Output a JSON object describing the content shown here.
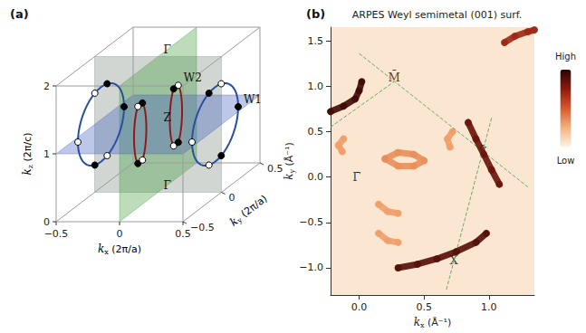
{
  "chart_data": [
    {
      "type": "3d_schematic",
      "panel": "(a)",
      "xlabel": "kx (2π/a)",
      "ylabel": "ky (2π/a)",
      "zlabel": "kz (2π/c)",
      "xlim": [
        -0.5,
        0.5
      ],
      "ylim": [
        -0.5,
        0.5
      ],
      "zlim": [
        0,
        2
      ],
      "xticks": [
        {
          "value": -0.5,
          "label": "−0.5"
        },
        0,
        0.5
      ],
      "yticks": [
        {
          "value": -0.5,
          "label": "−0.5"
        },
        0,
        0.5
      ],
      "zticks": [
        0,
        1,
        2
      ],
      "planes": [
        {
          "axis": "y",
          "value": 0,
          "color": "#7f8a80"
        },
        {
          "axis": "x",
          "value": 0,
          "color": "#3f9a3a"
        },
        {
          "axis": "z",
          "value": 1,
          "color": "#3f5fbf"
        }
      ],
      "rings": [
        {
          "center": [
            -0.45,
            0,
            1
          ],
          "radius": [
            0.3,
            0.55
          ],
          "color": "#2b4fa0"
        },
        {
          "center": [
            0.45,
            0,
            1
          ],
          "radius": [
            0.3,
            0.55
          ],
          "color": "#2b4fa0"
        },
        {
          "center": [
            -0.05,
            -0.15,
            1
          ],
          "radius": [
            0.08,
            0.45
          ],
          "color": "#8b1c1c"
        },
        {
          "center": [
            0.05,
            0.15,
            1
          ],
          "radius": [
            0.08,
            0.45
          ],
          "color": "#8b1c1c"
        }
      ],
      "weyl_points": [
        {
          "k": [
            -0.45,
            0.08,
            1.53
          ],
          "marker": "filled"
        },
        {
          "k": [
            -0.45,
            -0.08,
            1.53
          ],
          "marker": "open"
        },
        {
          "k": [
            -0.45,
            -0.08,
            0.47
          ],
          "marker": "filled"
        },
        {
          "k": [
            -0.45,
            0.08,
            0.47
          ],
          "marker": "open"
        },
        {
          "k": [
            -0.45,
            0.3,
            1
          ],
          "marker": "filled"
        },
        {
          "k": [
            -0.45,
            -0.3,
            1
          ],
          "marker": "open"
        },
        {
          "k": [
            0.45,
            0.08,
            1.53
          ],
          "marker": "open"
        },
        {
          "k": [
            0.45,
            -0.08,
            1.53
          ],
          "marker": "filled"
        },
        {
          "k": [
            0.45,
            -0.08,
            0.47
          ],
          "marker": "open"
        },
        {
          "k": [
            0.45,
            0.08,
            0.47
          ],
          "marker": "filled"
        },
        {
          "k": [
            0.45,
            0.3,
            1
          ],
          "marker": "filled"
        },
        {
          "k": [
            0.45,
            -0.3,
            1
          ],
          "marker": "open"
        },
        {
          "k": [
            -0.05,
            -0.12,
            1.42
          ],
          "marker": "filled"
        },
        {
          "k": [
            -0.05,
            -0.18,
            1.42
          ],
          "marker": "open"
        },
        {
          "k": [
            -0.05,
            -0.18,
            0.58
          ],
          "marker": "filled"
        },
        {
          "k": [
            -0.05,
            -0.12,
            0.58
          ],
          "marker": "open"
        },
        {
          "k": [
            0.05,
            0.18,
            1.42
          ],
          "marker": "open"
        },
        {
          "k": [
            0.05,
            0.12,
            1.42
          ],
          "marker": "filled"
        },
        {
          "k": [
            0.05,
            0.12,
            0.58
          ],
          "marker": "open"
        },
        {
          "k": [
            0.05,
            0.18,
            0.58
          ],
          "marker": "filled"
        }
      ],
      "point_labels": [
        {
          "text": "Γ",
          "k": [
            0,
            0,
            2
          ]
        },
        {
          "text": "Γ",
          "k": [
            0,
            0,
            0
          ]
        },
        {
          "text": "Z",
          "k": [
            0,
            0,
            1
          ]
        },
        {
          "text": "W1",
          "k": [
            0.45,
            0.3,
            1
          ]
        },
        {
          "text": "W2",
          "k": [
            0.05,
            0.18,
            1.42
          ]
        }
      ]
    },
    {
      "type": "intensity_map",
      "panel": "(b)",
      "title": "ARPES Weyl semimetal (001) surf.",
      "xlabel": "kx (Å⁻¹)",
      "ylabel": "ky (Å⁻¹)",
      "xlim": [
        -0.22,
        1.35
      ],
      "ylim": [
        -1.3,
        1.65
      ],
      "xticks": [
        {
          "value": 0,
          "label": "0.0"
        },
        0.5,
        {
          "value": 1,
          "label": "1.0"
        }
      ],
      "yticks": [
        {
          "value": -1,
          "label": "−1.0"
        },
        {
          "value": -0.5,
          "label": "−0.5"
        },
        {
          "value": 0,
          "label": "0.0"
        },
        0.5,
        {
          "value": 1,
          "label": "1.0"
        },
        1.5
      ],
      "features": [
        {
          "points": [
            [
              -0.12,
              0.42
            ],
            [
              -0.16,
              0.35
            ],
            [
              -0.13,
              0.28
            ]
          ],
          "intensity": 0.3
        },
        {
          "points": [
            [
              0.2,
              0.2
            ],
            [
              0.3,
              0.27
            ],
            [
              0.42,
              0.25
            ],
            [
              0.5,
              0.18
            ],
            [
              0.42,
              0.12
            ],
            [
              0.3,
              0.12
            ],
            [
              0.2,
              0.2
            ]
          ],
          "intensity": 0.35
        },
        {
          "points": [
            [
              0.72,
              0.5
            ],
            [
              0.68,
              0.42
            ],
            [
              0.7,
              0.33
            ]
          ],
          "intensity": 0.3
        },
        {
          "points": [
            [
              0.15,
              -0.3
            ],
            [
              0.22,
              -0.38
            ],
            [
              0.3,
              -0.4
            ]
          ],
          "intensity": 0.3
        },
        {
          "points": [
            [
              0.15,
              -0.62
            ],
            [
              0.22,
              -0.7
            ],
            [
              0.3,
              -0.72
            ]
          ],
          "intensity": 0.3
        },
        {
          "points": [
            [
              1.12,
              1.48
            ],
            [
              1.2,
              1.55
            ],
            [
              1.3,
              1.6
            ],
            [
              1.35,
              1.62
            ]
          ],
          "intensity": 0.7
        },
        {
          "points": [
            [
              0.84,
              0.6
            ],
            [
              0.9,
              0.42
            ],
            [
              0.96,
              0.25
            ],
            [
              1.02,
              0.08
            ],
            [
              1.08,
              -0.08
            ]
          ],
          "intensity": 0.85
        },
        {
          "points": [
            [
              0.3,
              -1.0
            ],
            [
              0.45,
              -0.96
            ],
            [
              0.6,
              -0.9
            ],
            [
              0.75,
              -0.82
            ],
            [
              0.9,
              -0.72
            ],
            [
              0.98,
              -0.62
            ]
          ],
          "intensity": 0.9
        },
        {
          "points": [
            [
              -0.22,
              0.72
            ],
            [
              -0.12,
              0.78
            ],
            [
              -0.03,
              0.86
            ],
            [
              0.0,
              0.95
            ],
            [
              0.02,
              1.05
            ]
          ],
          "intensity": 0.95
        }
      ],
      "bz_lines": {
        "color": "#6aa86a",
        "line_style": "dashed",
        "segments": [
          [
            [
              0.0,
              1.36
            ],
            [
              1.3,
              -0.11
            ]
          ],
          [
            [
              1.02,
              0.65
            ],
            [
              0.67,
              -1.25
            ]
          ],
          [
            [
              -0.22,
              0.55
            ],
            [
              0.27,
              1.05
            ]
          ]
        ]
      },
      "point_labels": [
        {
          "text": "Γ̄",
          "k": [
            -0.02,
            0.0
          ]
        },
        {
          "text": "M̄",
          "k": [
            0.27,
            1.1
          ]
        },
        {
          "text": "Ȳ",
          "k": [
            0.95,
            0.28
          ]
        },
        {
          "text": "X̄",
          "k": [
            0.73,
            -0.92
          ]
        }
      ],
      "colorbar": {
        "range": [
          0,
          1
        ],
        "labels": [
          "High",
          "Low"
        ]
      }
    }
  ]
}
